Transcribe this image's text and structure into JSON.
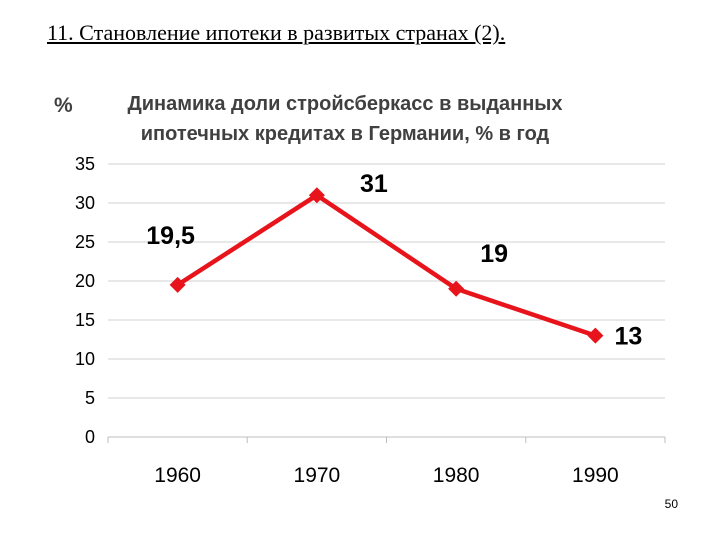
{
  "slide": {
    "title": "11. Становление ипотеки в развитых странах (2).",
    "page_number": "50"
  },
  "chart_data": {
    "type": "line",
    "unit_label": "%",
    "title_lines": [
      "Динамика доли стройсберкасс в выданных",
      "ипотечных кредитах в Германии, % в год"
    ],
    "categories": [
      "1960",
      "1970",
      "1980",
      "1990"
    ],
    "values": [
      19.5,
      31,
      19,
      13
    ],
    "data_labels": [
      "19,5",
      "31",
      "19",
      "13"
    ],
    "y_ticks": [
      "0",
      "5",
      "10",
      "15",
      "20",
      "25",
      "30",
      "35"
    ],
    "ylim": [
      0,
      35
    ],
    "grid": true,
    "legend": "none",
    "line_color": "#e8141b",
    "marker": "diamond"
  }
}
